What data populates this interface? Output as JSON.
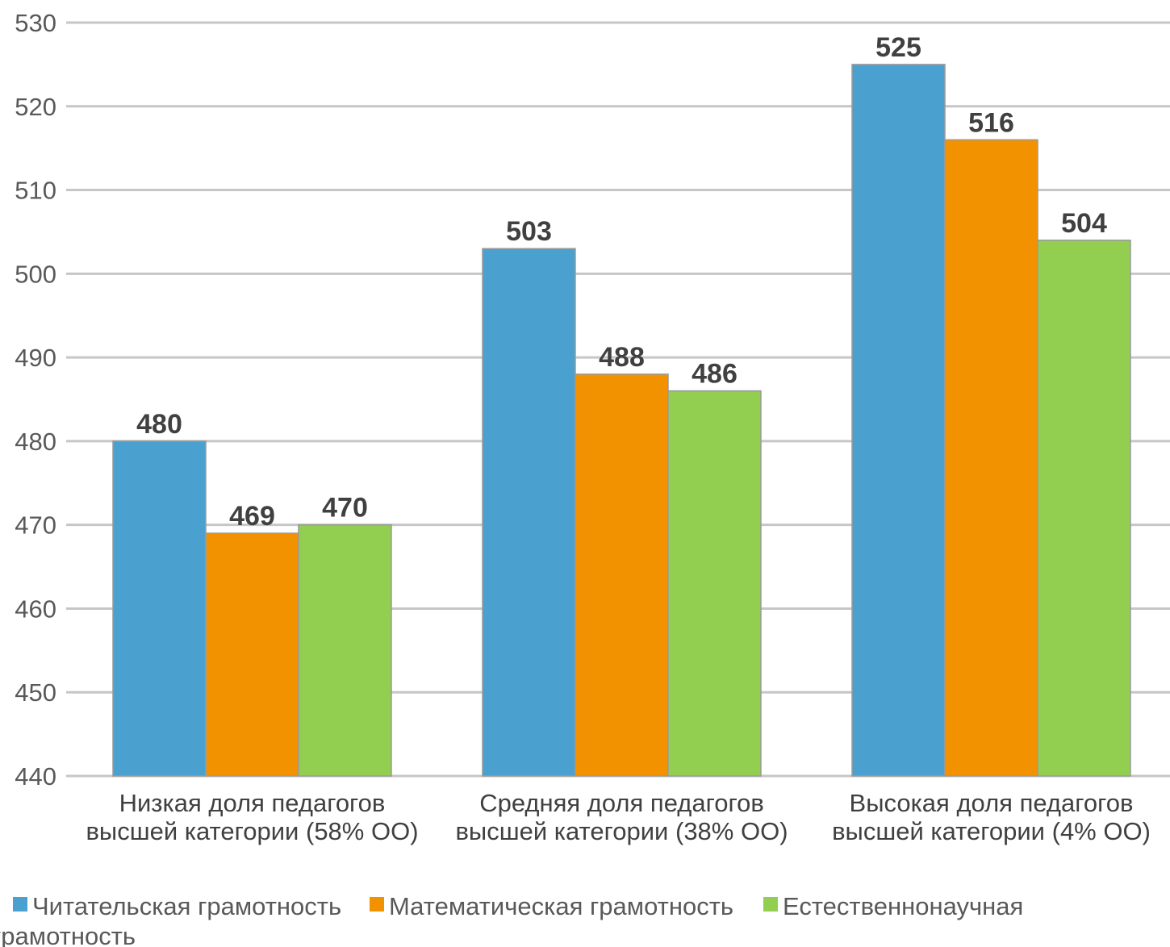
{
  "chart_data": {
    "type": "bar",
    "title": "",
    "xlabel": "",
    "ylabel": "",
    "ylim": [
      440,
      530
    ],
    "yticks": [
      440,
      450,
      460,
      470,
      480,
      490,
      500,
      510,
      520,
      530
    ],
    "grid": true,
    "legend_position": "bottom-left",
    "categories": [
      [
        "Низкая доля педагогов",
        "высшей категории (58% ОО)"
      ],
      [
        "Средняя доля педагогов",
        "высшей категории (38% ОО)"
      ],
      [
        "Высокая доля педагогов",
        "высшей категории (4% ОО)"
      ]
    ],
    "series": [
      {
        "name": "Читательская грамотность",
        "color": "#4aa1d0",
        "values": [
          480,
          503,
          525
        ]
      },
      {
        "name": "Математическая грамотность",
        "color": "#f39200",
        "values": [
          469,
          488,
          516
        ]
      },
      {
        "name": "Естественнонаучная грамотность",
        "color": "#92cf50",
        "values": [
          470,
          486,
          504
        ]
      }
    ]
  }
}
